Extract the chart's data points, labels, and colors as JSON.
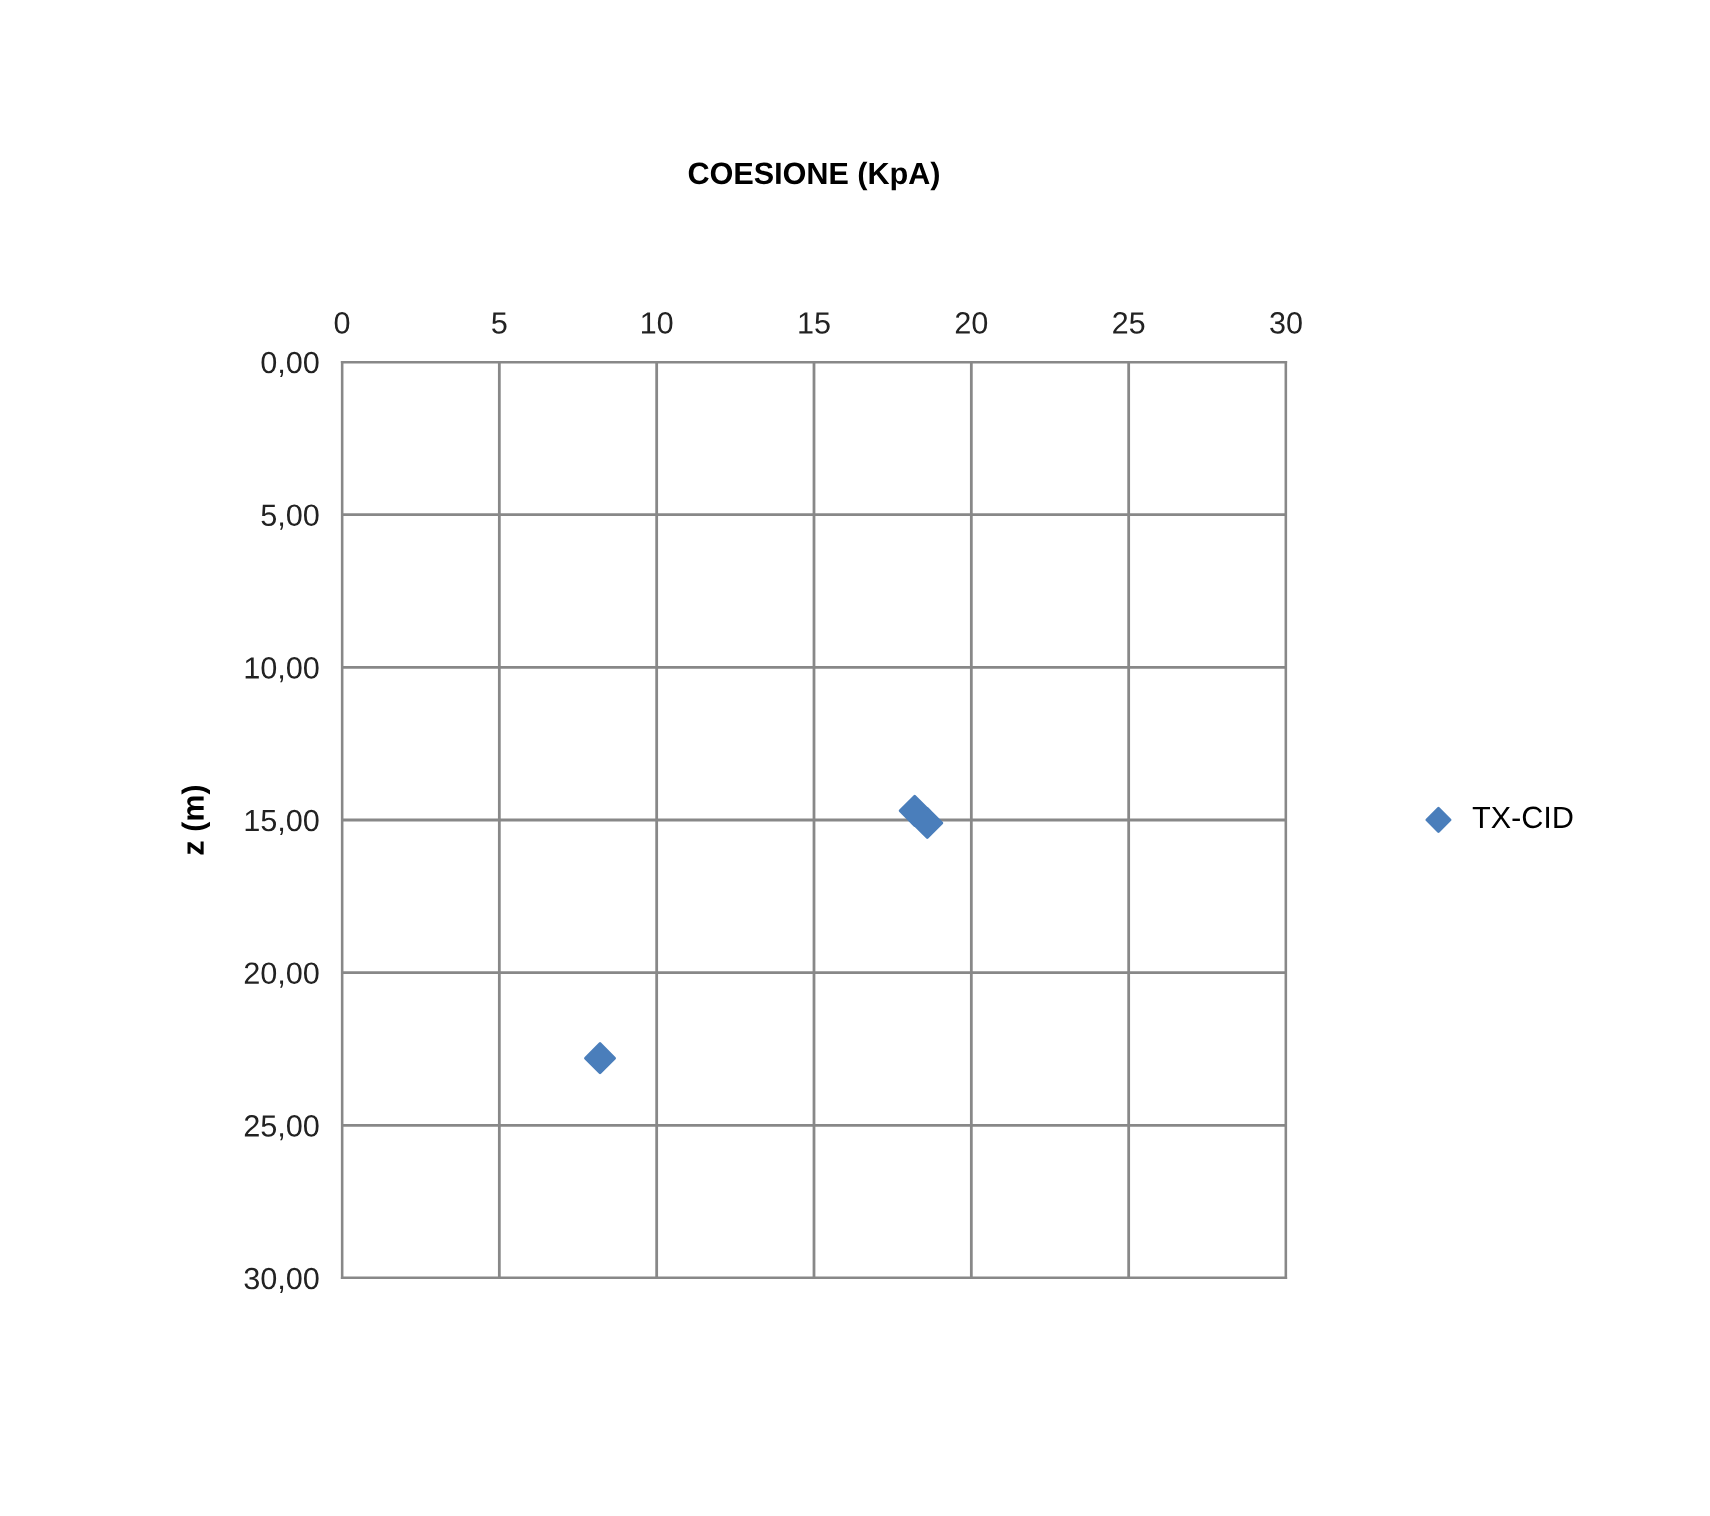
{
  "chart_data": {
    "type": "scatter",
    "title": "COESIONE (KpA)",
    "ylabel": "z (m)",
    "xlim": [
      0,
      30
    ],
    "xticks": [
      0,
      5,
      10,
      15,
      20,
      25,
      30
    ],
    "ylim": [
      30,
      0
    ],
    "yticks": [
      {
        "value": 0,
        "label": "0,00"
      },
      {
        "value": 5,
        "label": "5,00"
      },
      {
        "value": 10,
        "label": "10,00"
      },
      {
        "value": 15,
        "label": "15,00"
      },
      {
        "value": 20,
        "label": "20,00"
      },
      {
        "value": 25,
        "label": "25,00"
      },
      {
        "value": 30,
        "label": "30,00"
      }
    ],
    "grid": true,
    "legend": "right",
    "marker": "diamond",
    "series": [
      {
        "name": "TX-CID",
        "color": "#4a7ebb",
        "x": [
          18.2,
          18.6,
          8.2
        ],
        "values": [
          14.7,
          15.1,
          22.8
        ]
      }
    ]
  }
}
